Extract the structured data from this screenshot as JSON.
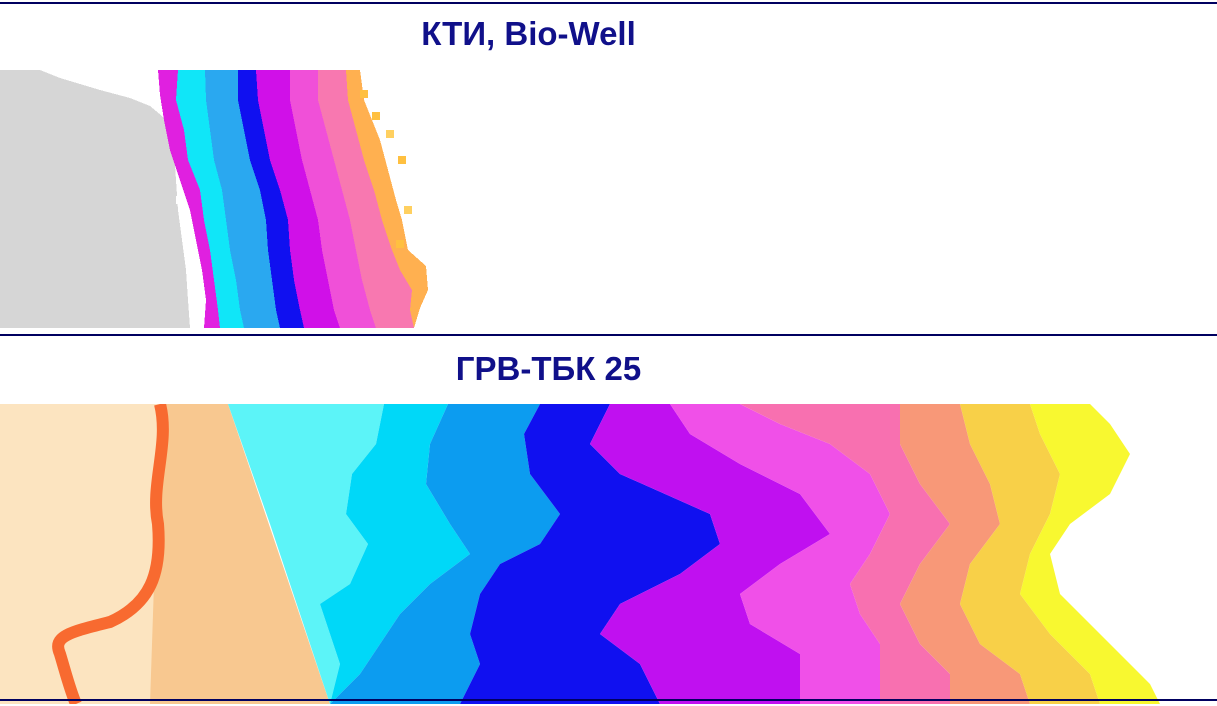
{
  "colors": {
    "rule": "#000060",
    "title": "#10108a",
    "background": "#ffffff"
  },
  "panels": [
    {
      "title": "КТИ, Bio-Well",
      "image": "pixelated-energy-gradient-map",
      "base_region_color": "#d6d6d6",
      "palette": [
        "#e010e0",
        "#00e0f8",
        "#2aa8f0",
        "#1010f0",
        "#e040e0",
        "#f060c8",
        "#f890a8",
        "#ffc040"
      ]
    },
    {
      "title": "ГРВ-ТБК 25",
      "image": "smooth-energy-gradient-map",
      "base_region_color": "#fce2be",
      "contour_color": "#f86a30",
      "palette": [
        "#5cf4f8",
        "#00d8f8",
        "#0c9cf0",
        "#1010f0",
        "#c010f0",
        "#f050e8",
        "#f870b0",
        "#f89878",
        "#f8d048",
        "#f8f830"
      ]
    }
  ]
}
